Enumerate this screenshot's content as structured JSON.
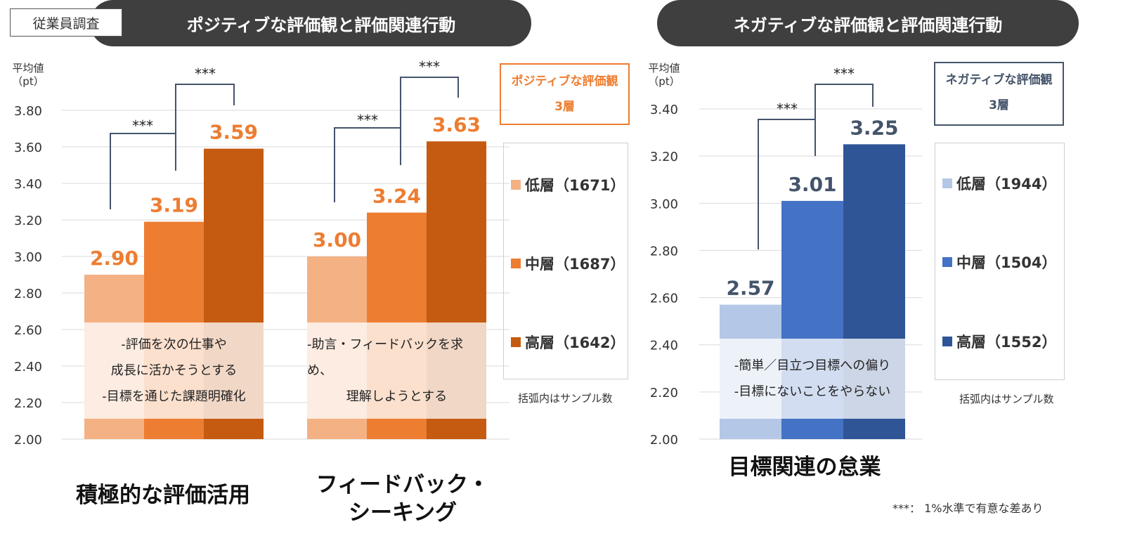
{
  "survey_tag": "従業員調査",
  "left_title": "ポジティブな評価観と評価関連行動",
  "right_title": "ネガティブな評価観と評価関連行動",
  "significance_note": "***： 1%水準で有意な差あり",
  "chart_data": [
    {
      "type": "bar",
      "ylabel": "平均値\n（pt）",
      "ylim": [
        2.0,
        3.8
      ],
      "yticks": [
        "2.00",
        "2.20",
        "2.40",
        "2.60",
        "2.80",
        "3.00",
        "3.20",
        "3.40",
        "3.60",
        "3.80"
      ],
      "grid": true,
      "legend_title": [
        "ポジティブな評価観",
        "3層"
      ],
      "legend": [
        "低層（1671）",
        "中層（1687）",
        "高層（1642）"
      ],
      "legend_note": "括弧内はサンプル数",
      "colors": [
        "#f4b183",
        "#ed7d31",
        "#c55a11"
      ],
      "label_color": "#ed7d31",
      "series": [
        {
          "name": "低層（1671）",
          "values": [
            2.9,
            3.0
          ]
        },
        {
          "name": "中層（1687）",
          "values": [
            3.19,
            3.24
          ]
        },
        {
          "name": "高層（1642）",
          "values": [
            3.59,
            3.63
          ]
        }
      ],
      "data_labels": [
        [
          "2.90",
          "3.00"
        ],
        [
          "3.19",
          "3.24"
        ],
        [
          "3.59",
          "3.63"
        ]
      ],
      "categories": [
        "積極的な評価活用",
        "フィードバック・\nシーキング"
      ],
      "overlays": [
        [
          "-評価を次の仕事や",
          "成長に活かそうとする",
          "-目標を通じた課題明確化"
        ],
        [
          "-助言・フィードバックを求め、",
          "理解しようとする"
        ]
      ],
      "significance": "***"
    },
    {
      "type": "bar",
      "ylabel": "平均値\n（pt）",
      "ylim": [
        2.0,
        3.4
      ],
      "yticks": [
        "2.00",
        "2.20",
        "2.40",
        "2.60",
        "2.80",
        "3.00",
        "3.20",
        "3.40"
      ],
      "grid": true,
      "legend_title": [
        "ネガティブな評価観",
        "3層"
      ],
      "legend": [
        "低層（1944）",
        "中層（1504）",
        "高層（1552）"
      ],
      "legend_note": "括弧内はサンプル数",
      "colors": [
        "#b4c7e7",
        "#4472c4",
        "#2f5597"
      ],
      "label_color": "#44546a",
      "series": [
        {
          "name": "低層（1944）",
          "values": [
            2.57
          ]
        },
        {
          "name": "中層（1504）",
          "values": [
            3.01
          ]
        },
        {
          "name": "高層（1552）",
          "values": [
            3.25
          ]
        }
      ],
      "data_labels": [
        [
          "2.57"
        ],
        [
          "3.01"
        ],
        [
          "3.25"
        ]
      ],
      "categories": [
        "目標関連の怠業"
      ],
      "overlays": [
        [
          "-簡単／目立つ目標への偏り",
          "-目標にないことをやらない"
        ]
      ],
      "significance": "***"
    }
  ]
}
